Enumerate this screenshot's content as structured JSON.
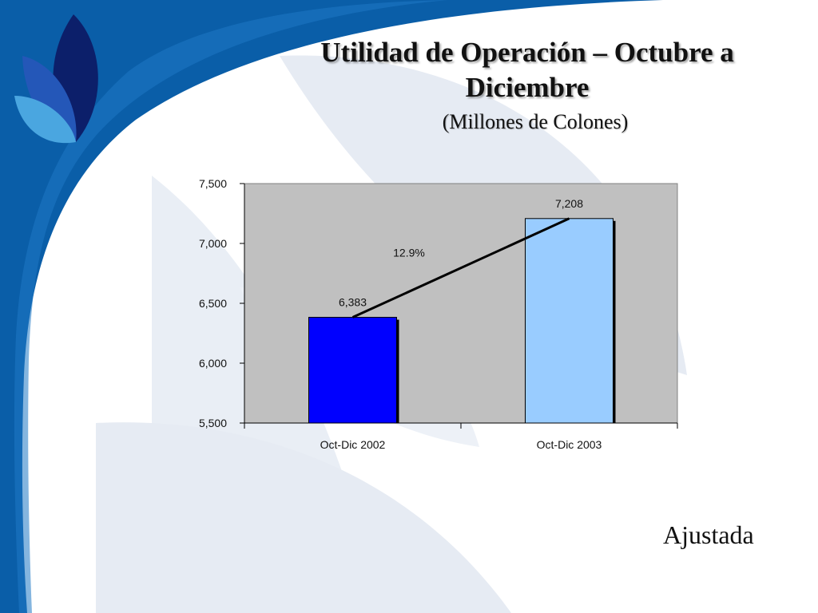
{
  "slide": {
    "title": "Utilidad de Operación – Octubre a Diciembre",
    "subtitle": "(Millones de Colones)",
    "footnote": "Ajustada"
  },
  "colors": {
    "band_dark": "#0a5ea8",
    "band_light": "#1f78c4",
    "watermark": "#e6ebf3",
    "plot_bg": "#c0c0c0",
    "bar_2002": "#0000ff",
    "bar_2003": "#99ccff"
  },
  "chart_data": {
    "type": "bar",
    "title": "",
    "xlabel": "",
    "ylabel": "",
    "categories": [
      "Oct-Dic 2002",
      "Oct-Dic 2003"
    ],
    "values": [
      6383,
      7208
    ],
    "data_labels": [
      "6,383",
      "7,208"
    ],
    "bar_colors": [
      "#0000ff",
      "#99ccff"
    ],
    "ylim": [
      5500,
      7500
    ],
    "yticks": [
      5500,
      6000,
      6500,
      7000,
      7500
    ],
    "ytick_labels": [
      "5,500",
      "6,000",
      "6,500",
      "7,000",
      "7,500"
    ],
    "grid": false,
    "annotation": {
      "text": "12.9%",
      "from": "Oct-Dic 2002",
      "to": "Oct-Dic 2003"
    }
  }
}
